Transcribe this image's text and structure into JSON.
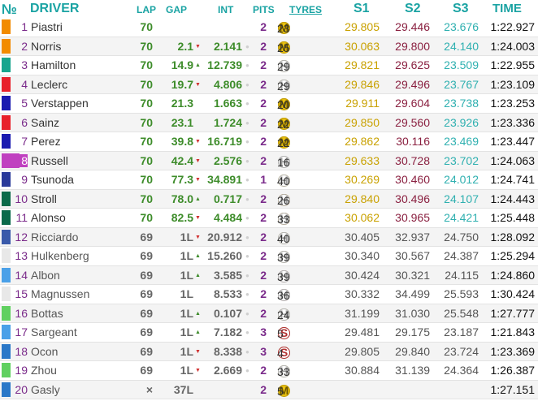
{
  "header": {
    "no": "№",
    "driver": "DRIVER",
    "lap": "LAP",
    "gap": "GAP",
    "int": "INT",
    "pits": "PITS",
    "tyres": "TYRES",
    "s1": "S1",
    "s2": "S2",
    "s3": "S3",
    "time": "TIME"
  },
  "colors": {
    "lead_lap_green": "#3d8c2a",
    "lapped_gray": "#666666",
    "sector_yellow": "#c9a100",
    "sector_maroon": "#8a2040",
    "sector_teal": "#2fb0b0",
    "sector_gray": "#555555"
  },
  "rows": [
    {
      "pos": "1",
      "driver": "Piastri",
      "team_color": "#f28b00",
      "lap": "70",
      "gap": "",
      "arrow": "",
      "int": "",
      "pits": "2",
      "tyres": [
        [
          "M",
          ""
        ],
        [
          "H",
          ""
        ],
        [
          "M",
          ""
        ]
      ],
      "tyre_laps": "23",
      "s1": "29.805",
      "s2": "29.446",
      "s3": "23.676",
      "time": "1:22.927",
      "lead_lap": true
    },
    {
      "pos": "2",
      "driver": "Norris",
      "team_color": "#f28b00",
      "lap": "70",
      "gap": "2.1",
      "arrow": "▼",
      "int": "2.141",
      "pits": "2",
      "tyres": [
        [
          "M",
          ""
        ],
        [
          "H",
          ""
        ],
        [
          "M",
          ""
        ]
      ],
      "tyre_laps": "25",
      "s1": "30.063",
      "s2": "29.800",
      "s3": "24.140",
      "time": "1:24.003",
      "lead_lap": true
    },
    {
      "pos": "3",
      "driver": "Hamilton",
      "team_color": "#18a58e",
      "lap": "70",
      "gap": "14.9",
      "arrow": "▲",
      "int": "12.739",
      "pits": "2",
      "tyres": [
        [
          "M",
          ""
        ],
        [
          "H",
          ""
        ],
        [
          "H",
          ""
        ]
      ],
      "tyre_laps": "29",
      "s1": "29.821",
      "s2": "29.625",
      "s3": "23.509",
      "time": "1:22.955",
      "lead_lap": true
    },
    {
      "pos": "4",
      "driver": "Leclerc",
      "team_color": "#e8202a",
      "lap": "70",
      "gap": "19.7",
      "arrow": "▼",
      "int": "4.806",
      "pits": "2",
      "tyres": [
        [
          "M",
          ""
        ],
        [
          "H",
          ""
        ],
        [
          "H",
          ""
        ]
      ],
      "tyre_laps": "29",
      "s1": "29.846",
      "s2": "29.496",
      "s3": "23.767",
      "time": "1:23.109",
      "lead_lap": true
    },
    {
      "pos": "5",
      "driver": "Verstappen",
      "team_color": "#1a1ab0",
      "lap": "70",
      "gap": "21.3",
      "arrow": "",
      "int": "1.663",
      "pits": "2",
      "tyres": [
        [
          "M",
          ""
        ],
        [
          "H",
          ""
        ],
        [
          "M",
          ""
        ]
      ],
      "tyre_laps": "20",
      "s1": "29.911",
      "s2": "29.604",
      "s3": "23.738",
      "time": "1:23.253",
      "lead_lap": true
    },
    {
      "pos": "6",
      "driver": "Sainz",
      "team_color": "#e8202a",
      "lap": "70",
      "gap": "23.1",
      "arrow": "",
      "int": "1.724",
      "pits": "2",
      "tyres": [
        [
          "M",
          ""
        ],
        [
          "H",
          ""
        ],
        [
          "M",
          ""
        ]
      ],
      "tyre_laps": "22",
      "s1": "29.850",
      "s2": "29.560",
      "s3": "23.926",
      "time": "1:23.336",
      "lead_lap": true
    },
    {
      "pos": "7",
      "driver": "Perez",
      "team_color": "#1a1ab0",
      "lap": "70",
      "gap": "39.8",
      "arrow": "▼",
      "int": "16.719",
      "pits": "2",
      "tyres": [
        [
          "M",
          ""
        ],
        [
          "H",
          ""
        ],
        [
          "M",
          ""
        ]
      ],
      "tyre_laps": "22",
      "s1": "29.862",
      "s2": "30.116",
      "s3": "23.469",
      "time": "1:23.447",
      "lead_lap": true
    },
    {
      "pos": "8",
      "driver": "Russell",
      "team_color": "#18a58e",
      "lap": "70",
      "gap": "42.4",
      "arrow": "▼",
      "int": "2.576",
      "pits": "2",
      "tyres": [
        [
          "H",
          ""
        ],
        [
          "H",
          ""
        ],
        [
          "H",
          ""
        ]
      ],
      "tyre_laps": "16",
      "s1": "29.633",
      "s2": "30.728",
      "s3": "23.702",
      "time": "1:24.063",
      "lead_lap": true,
      "highlight": "#c040c0"
    },
    {
      "pos": "9",
      "driver": "Tsunoda",
      "team_color": "#2a3a9a",
      "lap": "70",
      "gap": "77.3",
      "arrow": "▼",
      "int": "34.891",
      "pits": "1",
      "tyres": [
        [
          "M",
          ""
        ],
        [
          "H",
          ""
        ]
      ],
      "tyre_laps": "40",
      "s1": "30.269",
      "s2": "30.460",
      "s3": "24.012",
      "time": "1:24.741",
      "lead_lap": true
    },
    {
      "pos": "10",
      "driver": "Stroll",
      "team_color": "#0a6a4a",
      "lap": "70",
      "gap": "78.0",
      "arrow": "▲",
      "int": "0.717",
      "pits": "2",
      "tyres": [
        [
          "S",
          ""
        ],
        [
          "M",
          ""
        ],
        [
          "H",
          ""
        ]
      ],
      "tyre_laps": "26",
      "s1": "29.840",
      "s2": "30.496",
      "s3": "24.107",
      "time": "1:24.443",
      "lead_lap": true
    },
    {
      "pos": "11",
      "driver": "Alonso",
      "team_color": "#0a6a4a",
      "lap": "70",
      "gap": "82.5",
      "arrow": "▼",
      "int": "4.484",
      "pits": "2",
      "tyres": [
        [
          "S",
          ""
        ],
        [
          "M",
          ""
        ],
        [
          "H",
          ""
        ]
      ],
      "tyre_laps": "33",
      "s1": "30.062",
      "s2": "30.965",
      "s3": "24.421",
      "time": "1:25.448",
      "lead_lap": true
    },
    {
      "pos": "12",
      "driver": "Ricciardo",
      "team_color": "#3a5aaa",
      "lap": "69",
      "gap": "1L",
      "arrow": "▼",
      "int": "20.912",
      "pits": "2",
      "tyres": [
        [
          "M",
          ""
        ],
        [
          "H",
          ""
        ],
        [
          "H",
          ""
        ]
      ],
      "tyre_laps": "40",
      "s1": "30.405",
      "s2": "32.937",
      "s3": "24.750",
      "time": "1:28.092",
      "lead_lap": false
    },
    {
      "pos": "13",
      "driver": "Hulkenberg",
      "team_color": "#e8e8e8",
      "lap": "69",
      "gap": "1L",
      "arrow": "▲",
      "int": "15.260",
      "pits": "2",
      "tyres": [
        [
          "M",
          ""
        ],
        [
          "H",
          ""
        ],
        [
          "H",
          ""
        ]
      ],
      "tyre_laps": "39",
      "s1": "30.340",
      "s2": "30.567",
      "s3": "24.387",
      "time": "1:25.294",
      "lead_lap": false
    },
    {
      "pos": "14",
      "driver": "Albon",
      "team_color": "#4aa0e8",
      "lap": "69",
      "gap": "1L",
      "arrow": "▲",
      "int": "3.585",
      "pits": "2",
      "tyres": [
        [
          "S",
          ""
        ],
        [
          "H",
          ""
        ],
        [
          "H",
          ""
        ]
      ],
      "tyre_laps": "39",
      "s1": "30.424",
      "s2": "30.321",
      "s3": "24.115",
      "time": "1:24.860",
      "lead_lap": false
    },
    {
      "pos": "15",
      "driver": "Magnussen",
      "team_color": "#e8e8e8",
      "lap": "69",
      "gap": "1L",
      "arrow": "",
      "int": "8.533",
      "pits": "2",
      "tyres": [
        [
          "S",
          ""
        ],
        [
          "H",
          ""
        ],
        [
          "H",
          ""
        ]
      ],
      "tyre_laps": "36",
      "s1": "30.332",
      "s2": "34.499",
      "s3": "25.593",
      "time": "1:30.424",
      "lead_lap": false
    },
    {
      "pos": "16",
      "driver": "Bottas",
      "team_color": "#60d060",
      "lap": "69",
      "gap": "1L",
      "arrow": "▲",
      "int": "0.107",
      "pits": "2",
      "tyres": [
        [
          "M",
          ""
        ],
        [
          "H",
          ""
        ],
        [
          "H",
          ""
        ]
      ],
      "tyre_laps": "24",
      "s1": "31.199",
      "s2": "31.030",
      "s3": "25.548",
      "time": "1:27.777",
      "lead_lap": false
    },
    {
      "pos": "17",
      "driver": "Sargeant",
      "team_color": "#4aa0e8",
      "lap": "69",
      "gap": "1L",
      "arrow": "▲",
      "int": "7.182",
      "pits": "3",
      "tyres": [
        [
          "M",
          ""
        ],
        [
          "H",
          ""
        ],
        [
          "H",
          ""
        ],
        [
          "S",
          ""
        ]
      ],
      "tyre_laps": "5",
      "s1": "29.481",
      "s2": "29.175",
      "s3": "23.187",
      "time": "1:21.843",
      "lead_lap": false
    },
    {
      "pos": "18",
      "driver": "Ocon",
      "team_color": "#2a78c8",
      "lap": "69",
      "gap": "1L",
      "arrow": "▼",
      "int": "8.338",
      "pits": "3",
      "tyres": [
        [
          "M",
          ""
        ],
        [
          "H",
          ""
        ],
        [
          "H",
          ""
        ],
        [
          "S",
          ""
        ]
      ],
      "tyre_laps": "4",
      "s1": "29.805",
      "s2": "29.840",
      "s3": "23.724",
      "time": "1:23.369",
      "lead_lap": false
    },
    {
      "pos": "19",
      "driver": "Zhou",
      "team_color": "#60d060",
      "lap": "69",
      "gap": "1L",
      "arrow": "▼",
      "int": "2.669",
      "pits": "2",
      "tyres": [
        [
          "M",
          ""
        ],
        [
          "H",
          ""
        ],
        [
          "H",
          ""
        ]
      ],
      "tyre_laps": "33",
      "s1": "30.884",
      "s2": "31.139",
      "s3": "24.364",
      "time": "1:26.387",
      "lead_lap": false
    },
    {
      "pos": "20",
      "driver": "Gasly",
      "team_color": "#2a78c8",
      "lap": "×",
      "gap": "37L",
      "arrow": "",
      "int": "",
      "pits": "2",
      "tyres": [
        [
          "H",
          ""
        ],
        [
          "M",
          ""
        ]
      ],
      "tyre_laps": "5",
      "s1": "",
      "s2": "",
      "s3": "",
      "time": "1:27.151",
      "lead_lap": false
    }
  ]
}
